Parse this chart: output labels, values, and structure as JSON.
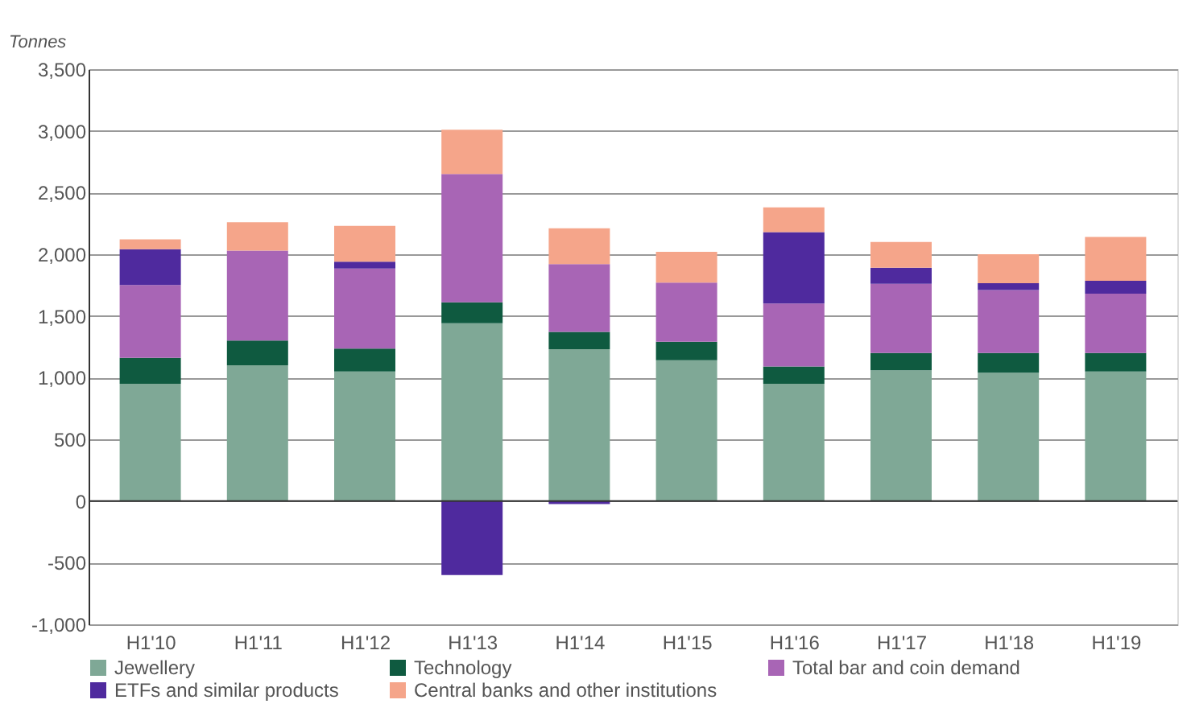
{
  "chart_data": {
    "type": "bar",
    "stacked": true,
    "ylabel": "Tonnes",
    "categories": [
      "H1'10",
      "H1'11",
      "H1'12",
      "H1'13",
      "H1'14",
      "H1'15",
      "H1'16",
      "H1'17",
      "H1'18",
      "H1'19"
    ],
    "series": [
      {
        "name": "Jewellery",
        "color": "#7fa896",
        "values": [
          950,
          1100,
          1050,
          1440,
          1230,
          1140,
          950,
          1060,
          1040,
          1050
        ]
      },
      {
        "name": "Technology",
        "color": "#0f5a40",
        "values": [
          210,
          200,
          185,
          170,
          140,
          150,
          140,
          140,
          160,
          150
        ]
      },
      {
        "name": "Total bar and coin demand",
        "color": "#a865b5",
        "values": [
          590,
          730,
          650,
          1040,
          550,
          480,
          510,
          560,
          510,
          480
        ]
      },
      {
        "name": "ETFs and similar products",
        "color": "#4f2a9e",
        "values": [
          290,
          0,
          55,
          -600,
          -25,
          0,
          580,
          130,
          55,
          105
        ]
      },
      {
        "name": "Central banks and other institutions",
        "color": "#f5a58a",
        "values": [
          80,
          230,
          290,
          360,
          290,
          250,
          200,
          210,
          235,
          355
        ]
      }
    ],
    "ylim": [
      -1000,
      3500
    ],
    "yticks": [
      {
        "value": -1000,
        "label": "-1,000"
      },
      -500,
      0,
      500,
      {
        "value": 1000,
        "label": "1,000"
      },
      {
        "value": 1500,
        "label": "1,500"
      },
      {
        "value": 2000,
        "label": "2,000"
      },
      {
        "value": 2500,
        "label": "2,500"
      },
      {
        "value": 3000,
        "label": "3,000"
      },
      {
        "value": 3500,
        "label": "3,500"
      }
    ],
    "grid": "y",
    "legend": "bottom"
  }
}
